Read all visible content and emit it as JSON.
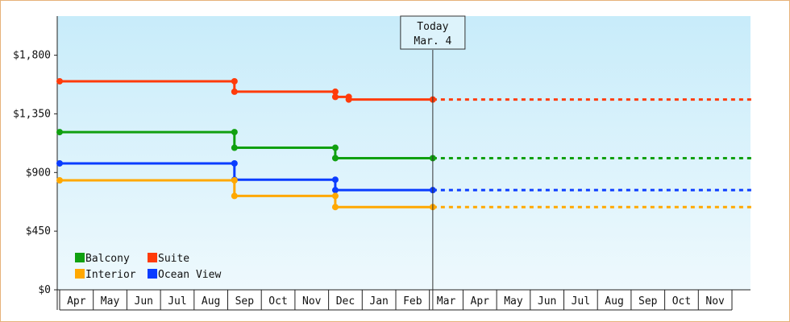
{
  "chart_data": {
    "type": "line",
    "step": true,
    "y_ticks": [
      "$0",
      "$450",
      "$900",
      "$1,350",
      "$1,800"
    ],
    "ylim": [
      0,
      2100
    ],
    "x_categories": [
      "Apr",
      "May",
      "Jun",
      "Jul",
      "Aug",
      "Sep",
      "Oct",
      "Nov",
      "Dec",
      "Jan",
      "Feb",
      "Mar",
      "Apr",
      "May",
      "Jun",
      "Jul",
      "Aug",
      "Sep",
      "Oct",
      "Nov"
    ],
    "today": {
      "line1": "Today",
      "line2": "Mar. 4",
      "index": 11.1
    },
    "grid": false,
    "legend_position": "bottom-left",
    "colors": {
      "Balcony": "#10a010",
      "Suite": "#ff3b0a",
      "Interior": "#ffa800",
      "Ocean View": "#0a3cff"
    },
    "series": [
      {
        "name": "Suite",
        "points": [
          {
            "x": 0,
            "y": 1600
          },
          {
            "x": 5.2,
            "y": 1600
          },
          {
            "x": 5.2,
            "y": 1520
          },
          {
            "x": 8.2,
            "y": 1520
          },
          {
            "x": 8.2,
            "y": 1480
          },
          {
            "x": 8.6,
            "y": 1480
          },
          {
            "x": 8.6,
            "y": 1460
          },
          {
            "x": 11.1,
            "y": 1460
          }
        ],
        "projection_to": 20.6
      },
      {
        "name": "Balcony",
        "points": [
          {
            "x": 0,
            "y": 1210
          },
          {
            "x": 5.2,
            "y": 1210
          },
          {
            "x": 5.2,
            "y": 1090
          },
          {
            "x": 8.2,
            "y": 1090
          },
          {
            "x": 8.2,
            "y": 1010
          },
          {
            "x": 11.1,
            "y": 1010
          }
        ],
        "projection_to": 20.6
      },
      {
        "name": "Ocean View",
        "points": [
          {
            "x": 0,
            "y": 970
          },
          {
            "x": 5.2,
            "y": 970
          },
          {
            "x": 5.2,
            "y": 845
          },
          {
            "x": 8.2,
            "y": 845
          },
          {
            "x": 8.2,
            "y": 765
          },
          {
            "x": 11.1,
            "y": 765
          }
        ],
        "projection_to": 20.6
      },
      {
        "name": "Interior",
        "points": [
          {
            "x": 0,
            "y": 840
          },
          {
            "x": 5.2,
            "y": 840
          },
          {
            "x": 5.2,
            "y": 720
          },
          {
            "x": 8.2,
            "y": 720
          },
          {
            "x": 8.2,
            "y": 635
          },
          {
            "x": 11.1,
            "y": 635
          }
        ],
        "projection_to": 20.6
      }
    ],
    "legend": [
      {
        "name": "Balcony"
      },
      {
        "name": "Suite"
      },
      {
        "name": "Interior"
      },
      {
        "name": "Ocean View"
      }
    ]
  }
}
